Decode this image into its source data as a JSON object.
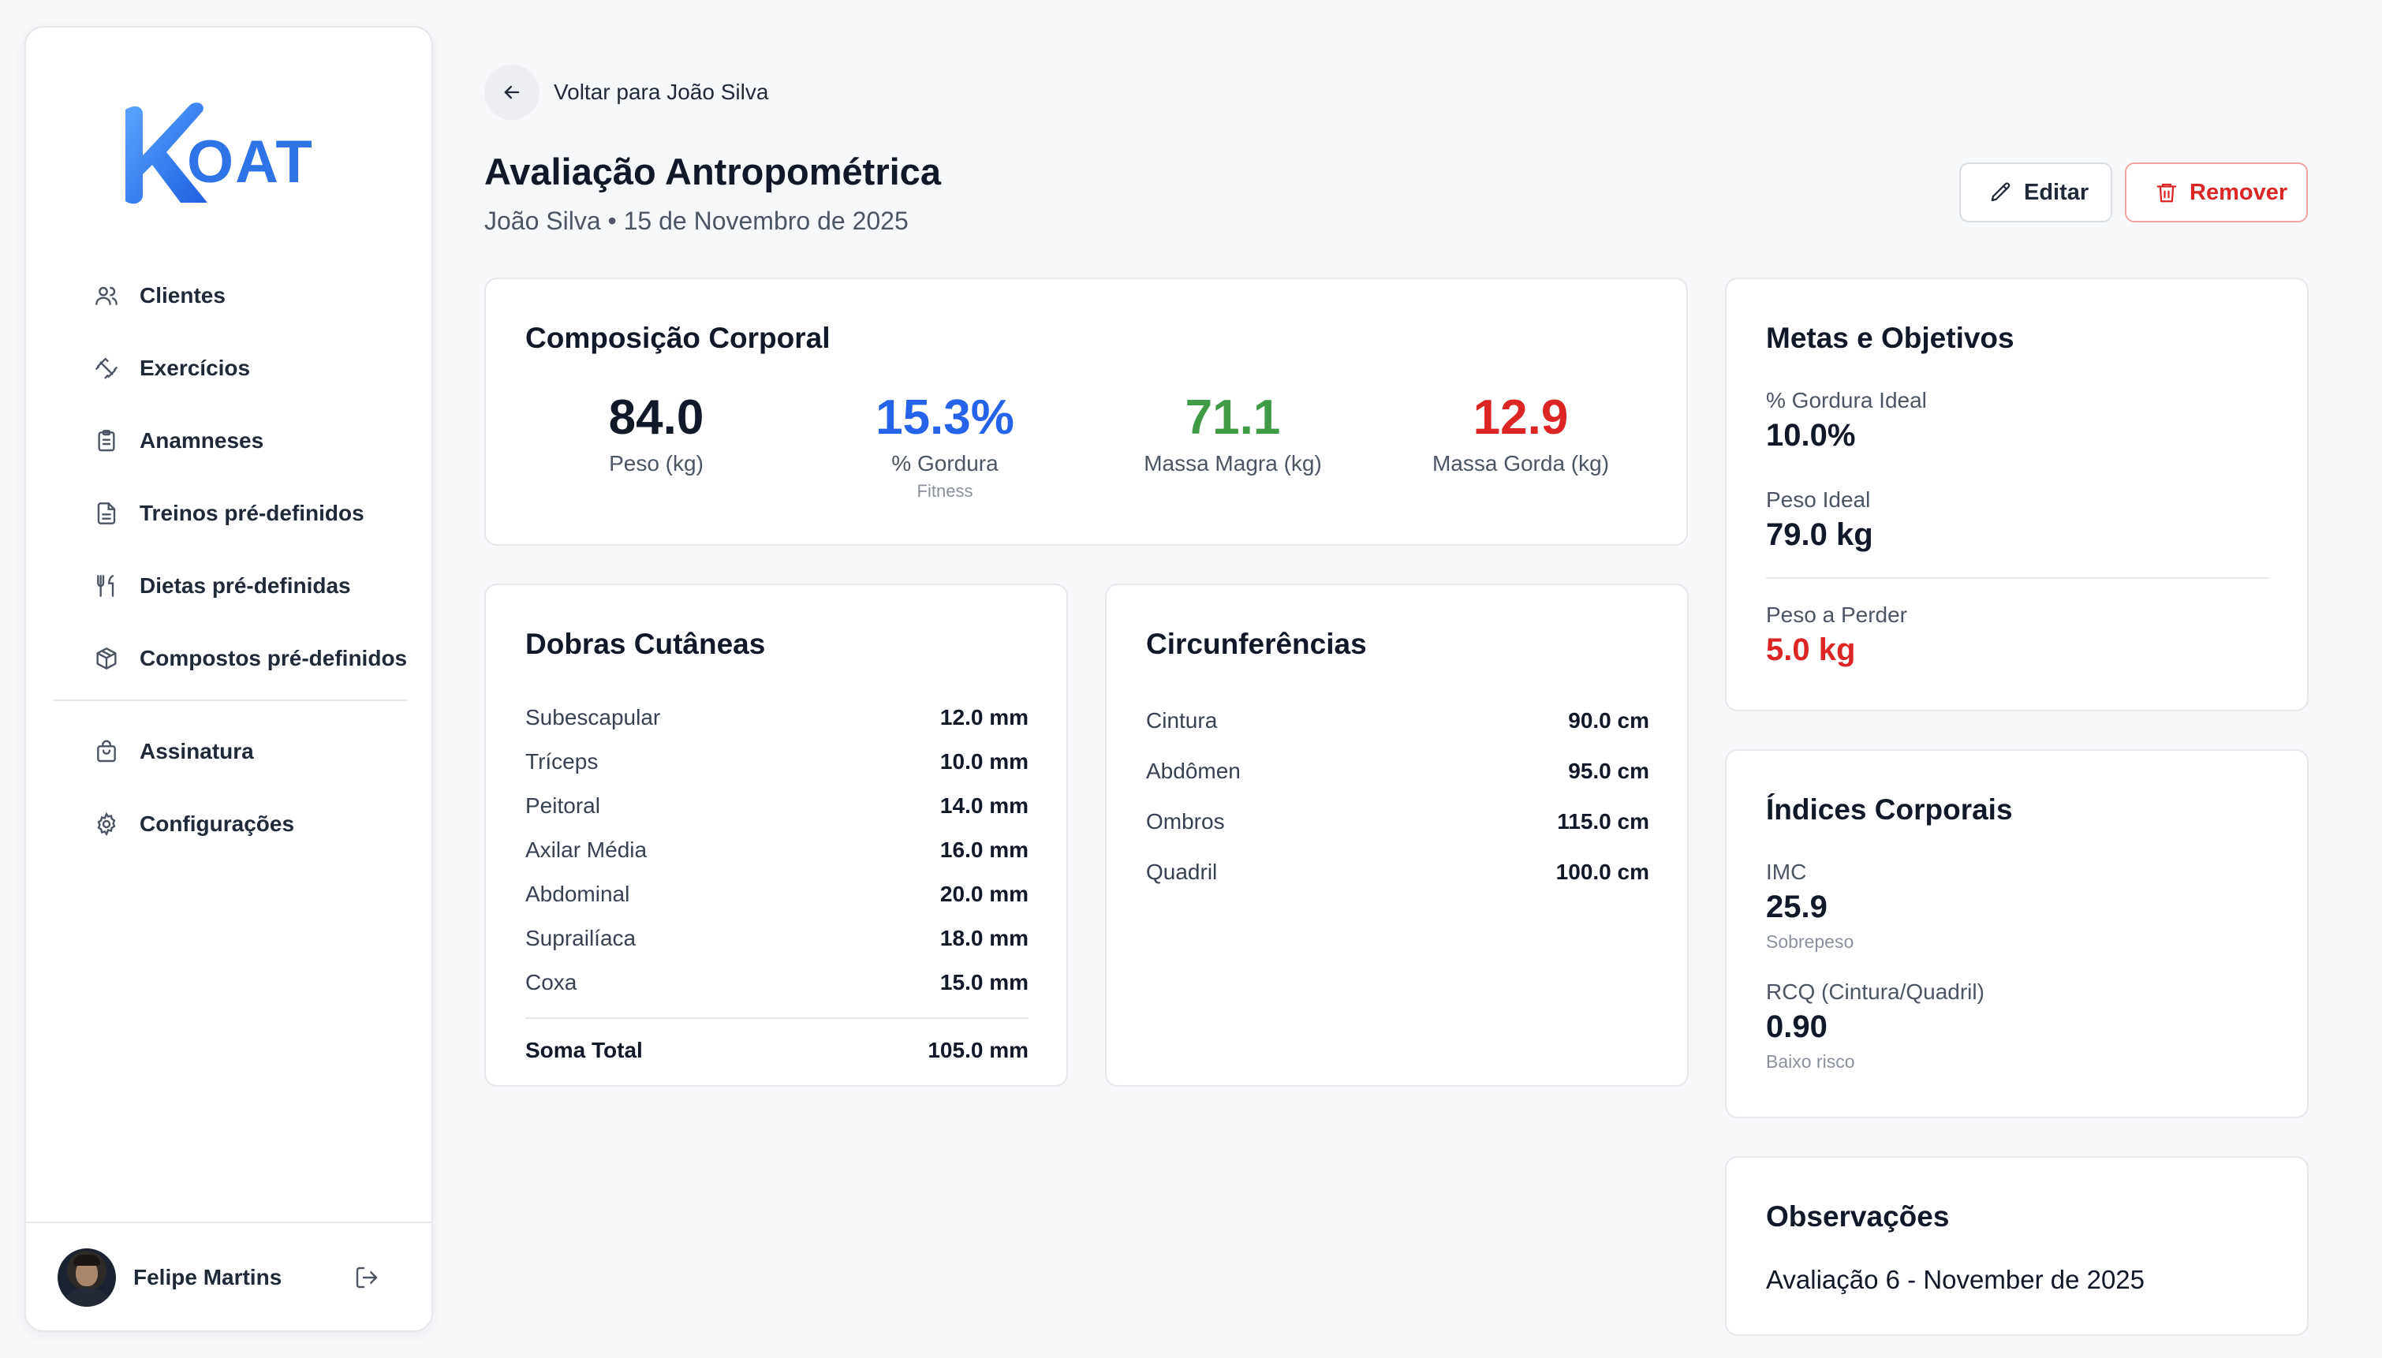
{
  "brand": {
    "logo_text": "OAT",
    "logo_letter": "K"
  },
  "sidebar": {
    "items": [
      {
        "label": "Clientes",
        "icon": "users-icon"
      },
      {
        "label": "Exercícios",
        "icon": "dumbbell-icon"
      },
      {
        "label": "Anamneses",
        "icon": "clipboard-icon"
      },
      {
        "label": "Treinos pré-definidos",
        "icon": "document-icon"
      },
      {
        "label": "Dietas pré-definidas",
        "icon": "utensils-icon"
      },
      {
        "label": "Compostos pré-definidos",
        "icon": "package-icon"
      },
      {
        "label": "Assinatura",
        "icon": "shopping-bag-icon"
      },
      {
        "label": "Configurações",
        "icon": "gear-icon"
      }
    ],
    "user": {
      "name": "Felipe Martins"
    }
  },
  "header": {
    "back_label": "Voltar para João Silva",
    "title": "Avaliação Antropométrica",
    "subtitle": "João Silva • 15 de Novembro de 2025",
    "edit_label": "Editar",
    "remove_label": "Remover"
  },
  "composition": {
    "title": "Composição Corporal",
    "stats": [
      {
        "value": "84.0",
        "label": "Peso (kg)",
        "color": "#111827"
      },
      {
        "value": "15.3%",
        "label": "% Gordura",
        "sub": "Fitness",
        "color": "#2563eb"
      },
      {
        "value": "71.1",
        "label": "Massa Magra (kg)",
        "color": "#3f9b46"
      },
      {
        "value": "12.9",
        "label": "Massa Gorda (kg)",
        "color": "#dc2626"
      }
    ]
  },
  "folds": {
    "title": "Dobras Cutâneas",
    "rows": [
      {
        "k": "Subescapular",
        "v": "12.0 mm"
      },
      {
        "k": "Tríceps",
        "v": "10.0 mm"
      },
      {
        "k": "Peitoral",
        "v": "14.0 mm"
      },
      {
        "k": "Axilar Média",
        "v": "16.0 mm"
      },
      {
        "k": "Abdominal",
        "v": "20.0 mm"
      },
      {
        "k": "Suprailíaca",
        "v": "18.0 mm"
      },
      {
        "k": "Coxa",
        "v": "15.0 mm"
      }
    ],
    "total_label": "Soma Total",
    "total_value": "105.0 mm"
  },
  "circumferences": {
    "title": "Circunferências",
    "rows": [
      {
        "k": "Cintura",
        "v": "90.0 cm"
      },
      {
        "k": "Abdômen",
        "v": "95.0 cm"
      },
      {
        "k": "Ombros",
        "v": "115.0 cm"
      },
      {
        "k": "Quadril",
        "v": "100.0 cm"
      }
    ]
  },
  "goals": {
    "title": "Metas e Objetivos",
    "ideal_fat_label": "% Gordura Ideal",
    "ideal_fat_value": "10.0%",
    "ideal_weight_label": "Peso Ideal",
    "ideal_weight_value": "79.0 kg",
    "lose_label": "Peso a Perder",
    "lose_value": "5.0 kg"
  },
  "indices": {
    "title": "Índices Corporais",
    "imc_label": "IMC",
    "imc_value": "25.9",
    "imc_note": "Sobrepeso",
    "rcq_label": "RCQ (Cintura/Quadril)",
    "rcq_value": "0.90",
    "rcq_note": "Baixo risco"
  },
  "observations": {
    "title": "Observações",
    "text": "Avaliação 6 - November de 2025"
  },
  "colors": {
    "accent": "#2563eb",
    "danger": "#dc2626",
    "success": "#3f9b46"
  }
}
